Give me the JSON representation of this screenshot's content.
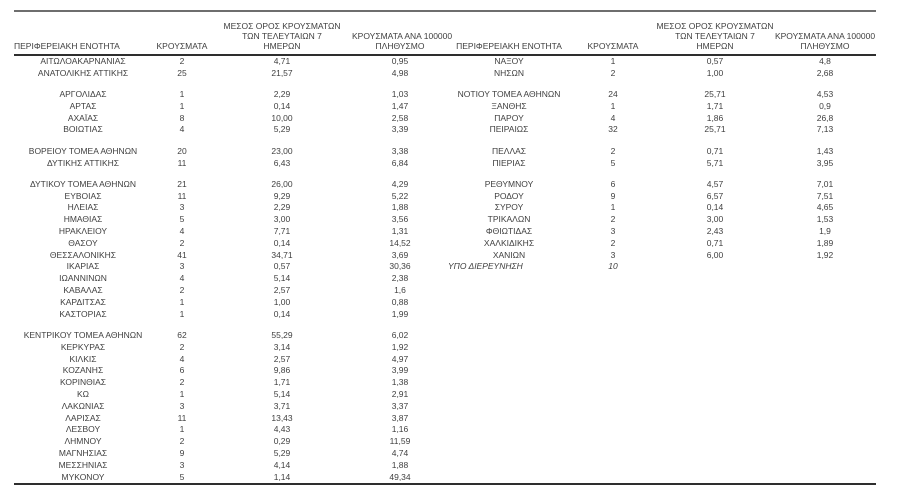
{
  "colors": {
    "background": "#ffffff",
    "text": "#3f3f3f",
    "rule_top": "#6e6e6e",
    "rule_dark": "#2e2e2e"
  },
  "table": {
    "header": {
      "region": "ΠΕΡΙΦΕΡΕΙΑΚΗ ΕΝΟΤΗΤΑ",
      "cases": "ΚΡΟΥΣΜΑΤΑ",
      "avg7_lines": [
        "ΜΕΣΟΣ ΟΡΟΣ ΚΡΟΥΣΜΑΤΩΝ",
        "ΤΩΝ ΤΕΛΕΥΤΑΙΩΝ 7",
        "ΗΜΕΡΩΝ"
      ],
      "per100k_lines": [
        "ΚΡΟΥΣΜΑΤΑ ΑΝΑ 100000",
        "ΠΛΗΘΥΣΜΟ"
      ]
    },
    "rows": [
      {
        "type": "data",
        "left": {
          "region": "ΑΙΤΩΛΟΑΚΑΡΝΑΝΙΑΣ",
          "cases": "2",
          "avg7": "4,71",
          "per100k": "0,95"
        },
        "right": {
          "region": "ΝΑΞΟΥ",
          "cases": "1",
          "avg7": "0,57",
          "per100k": "4,8"
        }
      },
      {
        "type": "data",
        "left": {
          "region": "ΑΝΑΤΟΛΙΚΗΣ ΑΤΤΙΚΗΣ",
          "cases": "25",
          "avg7": "21,57",
          "per100k": "4,98"
        },
        "right": {
          "region": "ΝΗΣΩΝ",
          "cases": "2",
          "avg7": "1,00",
          "per100k": "2,68"
        }
      },
      {
        "type": "spacer"
      },
      {
        "type": "data",
        "left": {
          "region": "ΑΡΓΟΛΙΔΑΣ",
          "cases": "1",
          "avg7": "2,29",
          "per100k": "1,03"
        },
        "right": {
          "region": "ΝΟΤΙΟΥ ΤΟΜΕΑ ΑΘΗΝΩΝ",
          "cases": "24",
          "avg7": "25,71",
          "per100k": "4,53"
        }
      },
      {
        "type": "data",
        "left": {
          "region": "ΑΡΤΑΣ",
          "cases": "1",
          "avg7": "0,14",
          "per100k": "1,47"
        },
        "right": {
          "region": "ΞΑΝΘΗΣ",
          "cases": "1",
          "avg7": "1,71",
          "per100k": "0,9"
        }
      },
      {
        "type": "data",
        "left": {
          "region": "ΑΧΑΪΑΣ",
          "cases": "8",
          "avg7": "10,00",
          "per100k": "2,58"
        },
        "right": {
          "region": "ΠΑΡΟΥ",
          "cases": "4",
          "avg7": "1,86",
          "per100k": "26,8"
        }
      },
      {
        "type": "data",
        "left": {
          "region": "ΒΟΙΩΤΙΑΣ",
          "cases": "4",
          "avg7": "5,29",
          "per100k": "3,39"
        },
        "right": {
          "region": "ΠΕΙΡΑΙΩΣ",
          "cases": "32",
          "avg7": "25,71",
          "per100k": "7,13"
        }
      },
      {
        "type": "spacer"
      },
      {
        "type": "data",
        "left": {
          "region": "ΒΟΡΕΙΟΥ ΤΟΜΕΑ ΑΘΗΝΩΝ",
          "cases": "20",
          "avg7": "23,00",
          "per100k": "3,38"
        },
        "right": {
          "region": "ΠΕΛΛΑΣ",
          "cases": "2",
          "avg7": "0,71",
          "per100k": "1,43"
        }
      },
      {
        "type": "data",
        "left": {
          "region": "ΔΥΤΙΚΗΣ ΑΤΤΙΚΗΣ",
          "cases": "11",
          "avg7": "6,43",
          "per100k": "6,84"
        },
        "right": {
          "region": "ΠΙΕΡΙΑΣ",
          "cases": "5",
          "avg7": "5,71",
          "per100k": "3,95"
        }
      },
      {
        "type": "spacer"
      },
      {
        "type": "data",
        "left": {
          "region": "ΔΥΤΙΚΟΥ ΤΟΜΕΑ ΑΘΗΝΩΝ",
          "cases": "21",
          "avg7": "26,00",
          "per100k": "4,29"
        },
        "right": {
          "region": "ΡΕΘΥΜΝΟΥ",
          "cases": "6",
          "avg7": "4,57",
          "per100k": "7,01"
        }
      },
      {
        "type": "data",
        "left": {
          "region": "ΕΥΒΟΙΑΣ",
          "cases": "11",
          "avg7": "9,29",
          "per100k": "5,22"
        },
        "right": {
          "region": "ΡΟΔΟΥ",
          "cases": "9",
          "avg7": "6,57",
          "per100k": "7,51"
        }
      },
      {
        "type": "data",
        "left": {
          "region": "ΗΛΕΙΑΣ",
          "cases": "3",
          "avg7": "2,29",
          "per100k": "1,88"
        },
        "right": {
          "region": "ΣΥΡΟΥ",
          "cases": "1",
          "avg7": "0,14",
          "per100k": "4,65"
        }
      },
      {
        "type": "data",
        "left": {
          "region": "ΗΜΑΘΙΑΣ",
          "cases": "5",
          "avg7": "3,00",
          "per100k": "3,56"
        },
        "right": {
          "region": "ΤΡΙΚΑΛΩΝ",
          "cases": "2",
          "avg7": "3,00",
          "per100k": "1,53"
        }
      },
      {
        "type": "data",
        "left": {
          "region": "ΗΡΑΚΛΕΙΟΥ",
          "cases": "4",
          "avg7": "7,71",
          "per100k": "1,31"
        },
        "right": {
          "region": "ΦΘΙΩΤΙΔΑΣ",
          "cases": "3",
          "avg7": "2,43",
          "per100k": "1,9"
        }
      },
      {
        "type": "data",
        "left": {
          "region": "ΘΑΣΟΥ",
          "cases": "2",
          "avg7": "0,14",
          "per100k": "14,52"
        },
        "right": {
          "region": "ΧΑΛΚΙΔΙΚΗΣ",
          "cases": "2",
          "avg7": "0,71",
          "per100k": "1,89"
        }
      },
      {
        "type": "data",
        "left": {
          "region": "ΘΕΣΣΑΛΟΝΙΚΗΣ",
          "cases": "41",
          "avg7": "34,71",
          "per100k": "3,69"
        },
        "right": {
          "region": "ΧΑΝΙΩΝ",
          "cases": "3",
          "avg7": "6,00",
          "per100k": "1,92"
        }
      },
      {
        "type": "data",
        "left": {
          "region": "ΙΚΑΡΙΑΣ",
          "cases": "3",
          "avg7": "0,57",
          "per100k": "30,36"
        },
        "right": {
          "region": "ΥΠΟ ΔΙΕΡΕΥΝΗΣΗ",
          "cases": "10",
          "avg7": "",
          "per100k": ""
        },
        "right_italic": true,
        "right_region_align_left": true
      },
      {
        "type": "data",
        "left": {
          "region": "ΙΩΑΝΝΙΝΩΝ",
          "cases": "4",
          "avg7": "5,14",
          "per100k": "2,38"
        },
        "right": {
          "region": "",
          "cases": "",
          "avg7": "",
          "per100k": ""
        }
      },
      {
        "type": "data",
        "left": {
          "region": "ΚΑΒΑΛΑΣ",
          "cases": "2",
          "avg7": "2,57",
          "per100k": "1,6"
        },
        "right": {
          "region": "",
          "cases": "",
          "avg7": "",
          "per100k": ""
        }
      },
      {
        "type": "data",
        "left": {
          "region": "ΚΑΡΔΙΤΣΑΣ",
          "cases": "1",
          "avg7": "1,00",
          "per100k": "0,88"
        },
        "right": {
          "region": "",
          "cases": "",
          "avg7": "",
          "per100k": ""
        }
      },
      {
        "type": "data",
        "left": {
          "region": "ΚΑΣΤΟΡΙΑΣ",
          "cases": "1",
          "avg7": "0,14",
          "per100k": "1,99"
        },
        "right": {
          "region": "",
          "cases": "",
          "avg7": "",
          "per100k": ""
        }
      },
      {
        "type": "spacer"
      },
      {
        "type": "data",
        "left": {
          "region": "ΚΕΝΤΡΙΚΟΥ ΤΟΜΕΑ ΑΘΗΝΩΝ",
          "cases": "62",
          "avg7": "55,29",
          "per100k": "6,02"
        },
        "right": {
          "region": "",
          "cases": "",
          "avg7": "",
          "per100k": ""
        }
      },
      {
        "type": "data",
        "left": {
          "region": "ΚΕΡΚΥΡΑΣ",
          "cases": "2",
          "avg7": "3,14",
          "per100k": "1,92"
        },
        "right": {
          "region": "",
          "cases": "",
          "avg7": "",
          "per100k": ""
        }
      },
      {
        "type": "data",
        "left": {
          "region": "ΚΙΛΚΙΣ",
          "cases": "4",
          "avg7": "2,57",
          "per100k": "4,97"
        },
        "right": {
          "region": "",
          "cases": "",
          "avg7": "",
          "per100k": ""
        }
      },
      {
        "type": "data",
        "left": {
          "region": "ΚΟΖΑΝΗΣ",
          "cases": "6",
          "avg7": "9,86",
          "per100k": "3,99"
        },
        "right": {
          "region": "",
          "cases": "",
          "avg7": "",
          "per100k": ""
        }
      },
      {
        "type": "data",
        "left": {
          "region": "ΚΟΡΙΝΘΙΑΣ",
          "cases": "2",
          "avg7": "1,71",
          "per100k": "1,38"
        },
        "right": {
          "region": "",
          "cases": "",
          "avg7": "",
          "per100k": ""
        }
      },
      {
        "type": "data",
        "left": {
          "region": "ΚΩ",
          "cases": "1",
          "avg7": "5,14",
          "per100k": "2,91"
        },
        "right": {
          "region": "",
          "cases": "",
          "avg7": "",
          "per100k": ""
        }
      },
      {
        "type": "data",
        "left": {
          "region": "ΛΑΚΩΝΙΑΣ",
          "cases": "3",
          "avg7": "3,71",
          "per100k": "3,37"
        },
        "right": {
          "region": "",
          "cases": "",
          "avg7": "",
          "per100k": ""
        }
      },
      {
        "type": "data",
        "left": {
          "region": "ΛΑΡΙΣΑΣ",
          "cases": "11",
          "avg7": "13,43",
          "per100k": "3,87"
        },
        "right": {
          "region": "",
          "cases": "",
          "avg7": "",
          "per100k": ""
        }
      },
      {
        "type": "data",
        "left": {
          "region": "ΛΕΣΒΟΥ",
          "cases": "1",
          "avg7": "4,43",
          "per100k": "1,16"
        },
        "right": {
          "region": "",
          "cases": "",
          "avg7": "",
          "per100k": ""
        }
      },
      {
        "type": "data",
        "left": {
          "region": "ΛΗΜΝΟΥ",
          "cases": "2",
          "avg7": "0,29",
          "per100k": "11,59"
        },
        "right": {
          "region": "",
          "cases": "",
          "avg7": "",
          "per100k": ""
        }
      },
      {
        "type": "data",
        "left": {
          "region": "ΜΑΓΝΗΣΙΑΣ",
          "cases": "9",
          "avg7": "5,29",
          "per100k": "4,74"
        },
        "right": {
          "region": "",
          "cases": "",
          "avg7": "",
          "per100k": ""
        }
      },
      {
        "type": "data",
        "left": {
          "region": "ΜΕΣΣΗΝΙΑΣ",
          "cases": "3",
          "avg7": "4,14",
          "per100k": "1,88"
        },
        "right": {
          "region": "",
          "cases": "",
          "avg7": "",
          "per100k": ""
        }
      },
      {
        "type": "data",
        "left": {
          "region": "ΜΥΚΟΝΟΥ",
          "cases": "5",
          "avg7": "1,14",
          "per100k": "49,34"
        },
        "right": {
          "region": "",
          "cases": "",
          "avg7": "",
          "per100k": ""
        }
      }
    ]
  }
}
